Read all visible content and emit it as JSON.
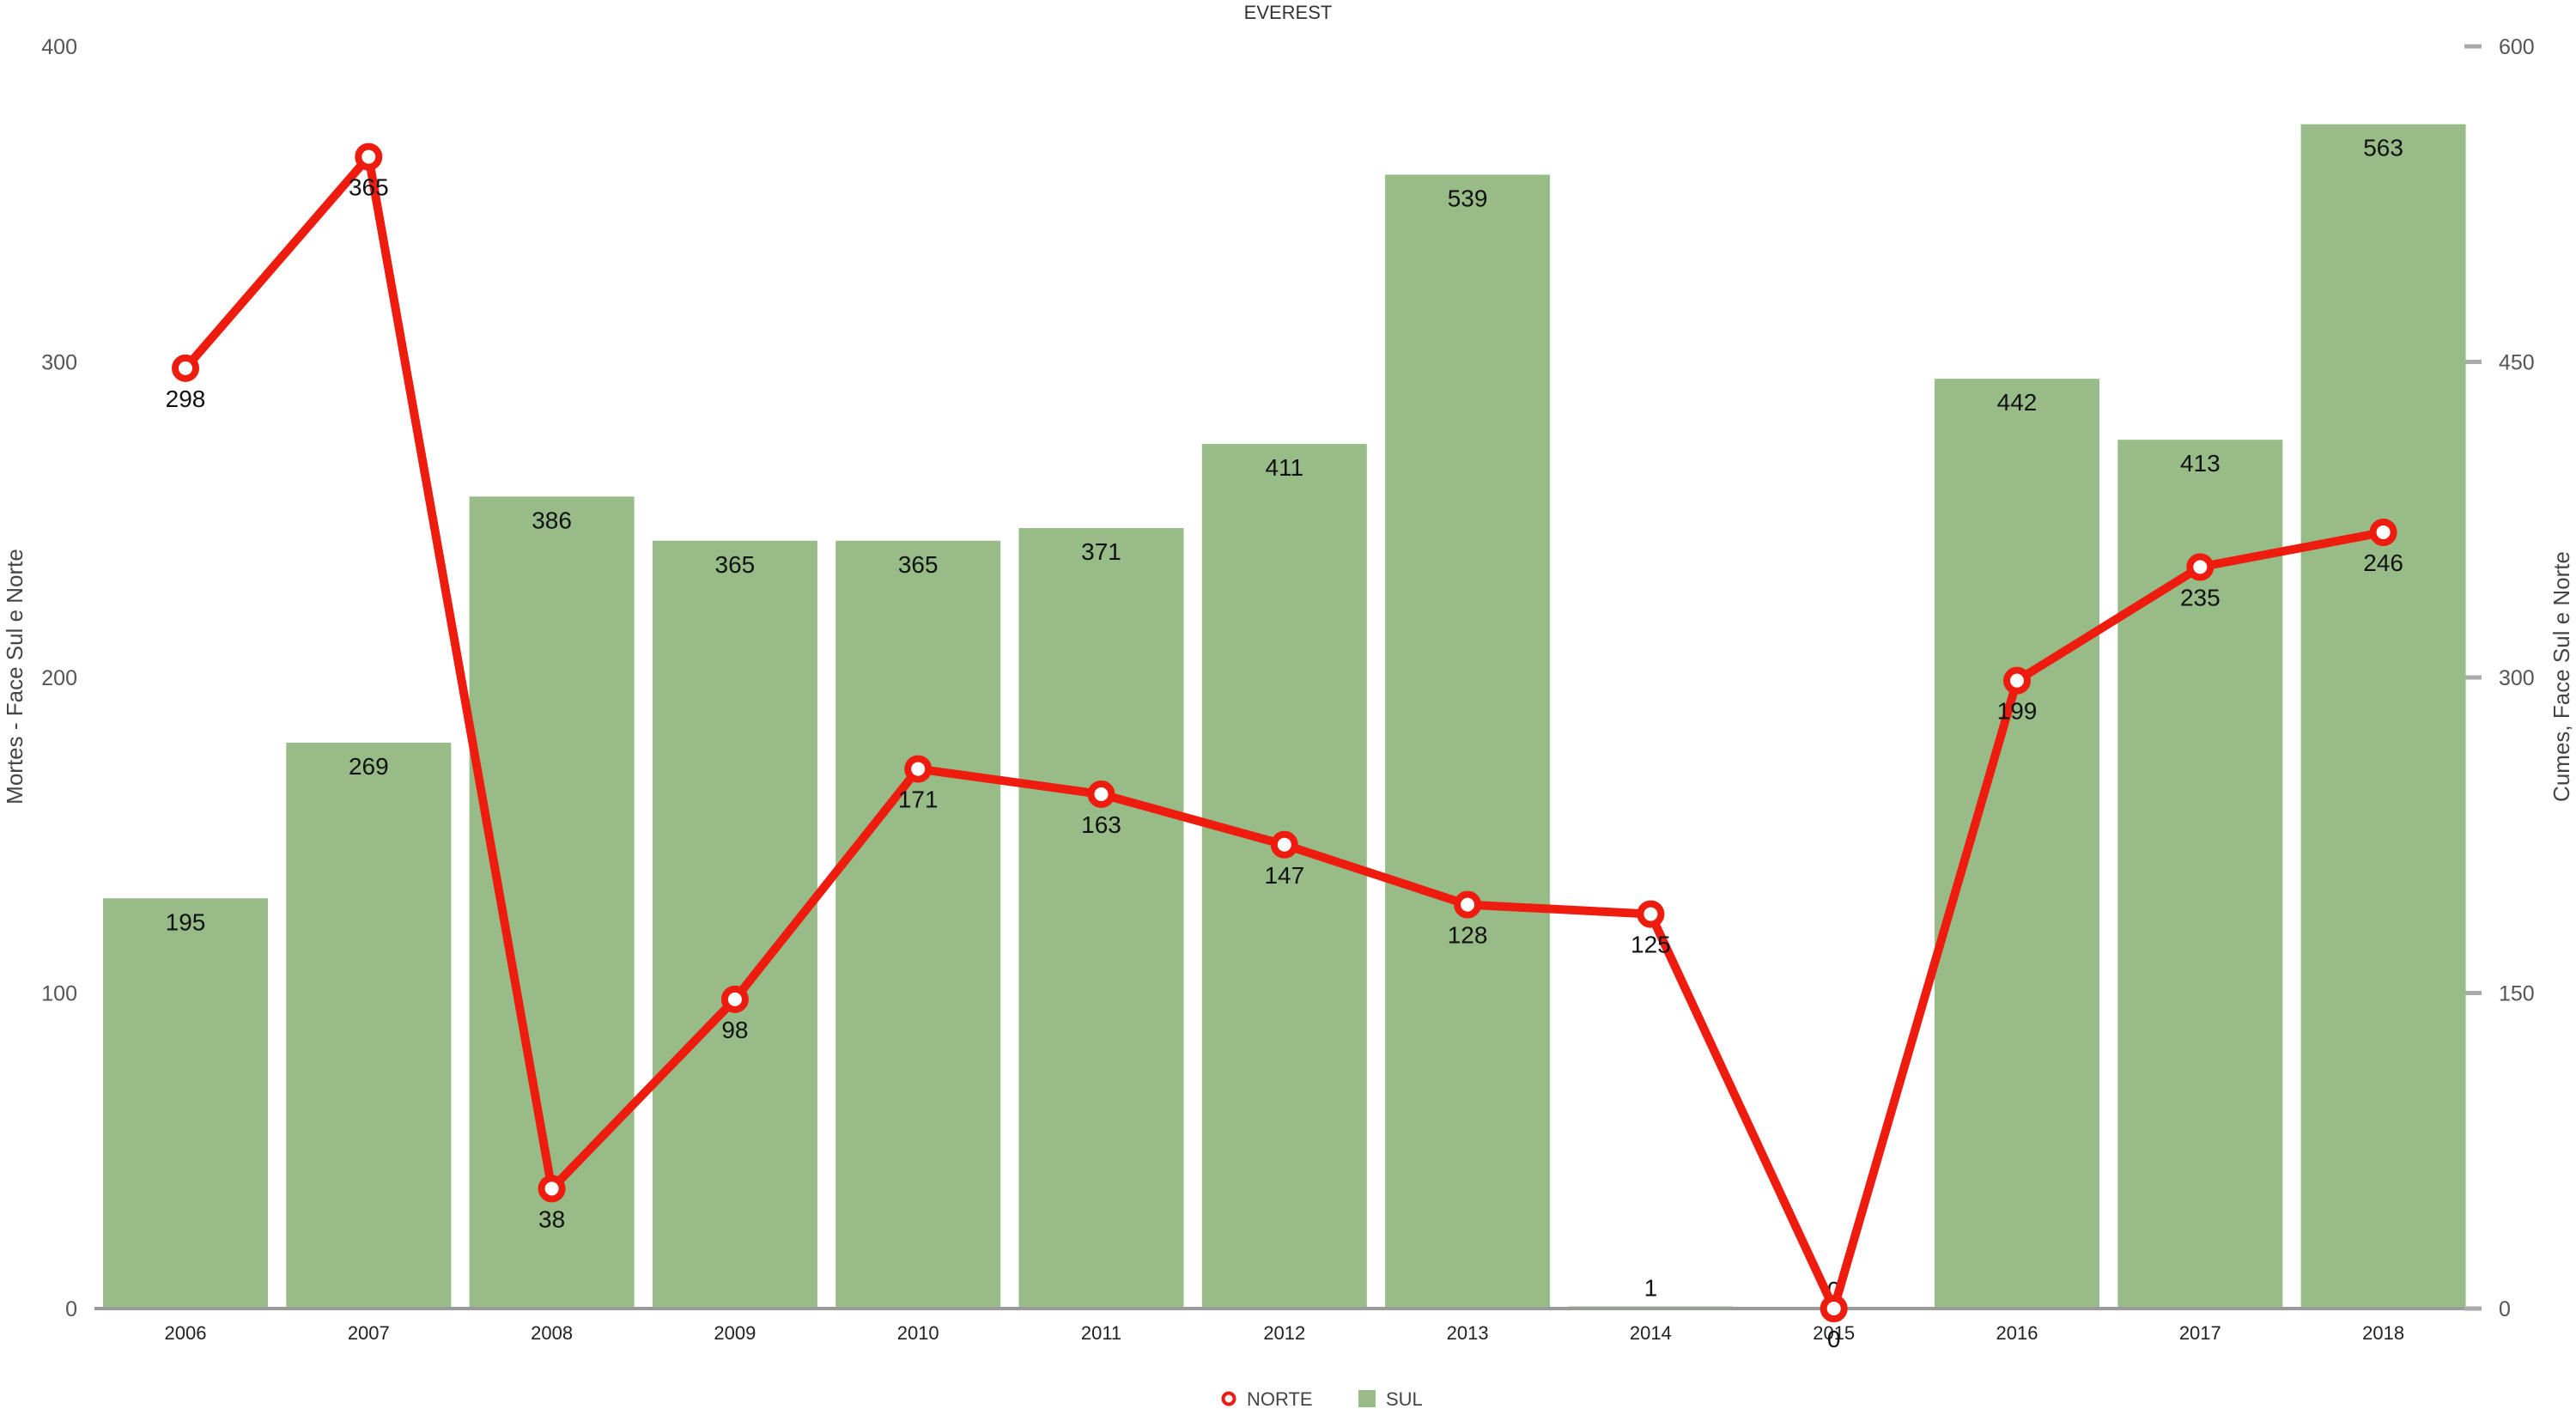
{
  "chart_data": {
    "type": "bar+line",
    "title": "EVEREST",
    "categories": [
      "2006",
      "2007",
      "2008",
      "2009",
      "2010",
      "2011",
      "2012",
      "2013",
      "2014",
      "2015",
      "2016",
      "2017",
      "2018"
    ],
    "series": [
      {
        "name": "NORTE",
        "type": "line",
        "axis": "left",
        "color": "#ee1c0e",
        "values": [
          298,
          365,
          38,
          98,
          171,
          163,
          147,
          128,
          125,
          0,
          199,
          235,
          246
        ]
      },
      {
        "name": "SUL",
        "type": "bar",
        "axis": "right",
        "color": "#97bc87",
        "values": [
          195,
          269,
          386,
          365,
          365,
          371,
          411,
          539,
          1,
          0,
          442,
          413,
          563
        ]
      }
    ],
    "y_left": {
      "label": "Mortes - Face Sul e Norte",
      "min": 0,
      "max": 400,
      "ticks": [
        0,
        100,
        200,
        300,
        400
      ]
    },
    "y_right": {
      "label": "Cumes, Face Sul e Norte",
      "min": 0,
      "max": 600,
      "ticks": [
        0,
        150,
        300,
        450,
        600
      ]
    },
    "grid": false,
    "legend": "bottom-center"
  }
}
